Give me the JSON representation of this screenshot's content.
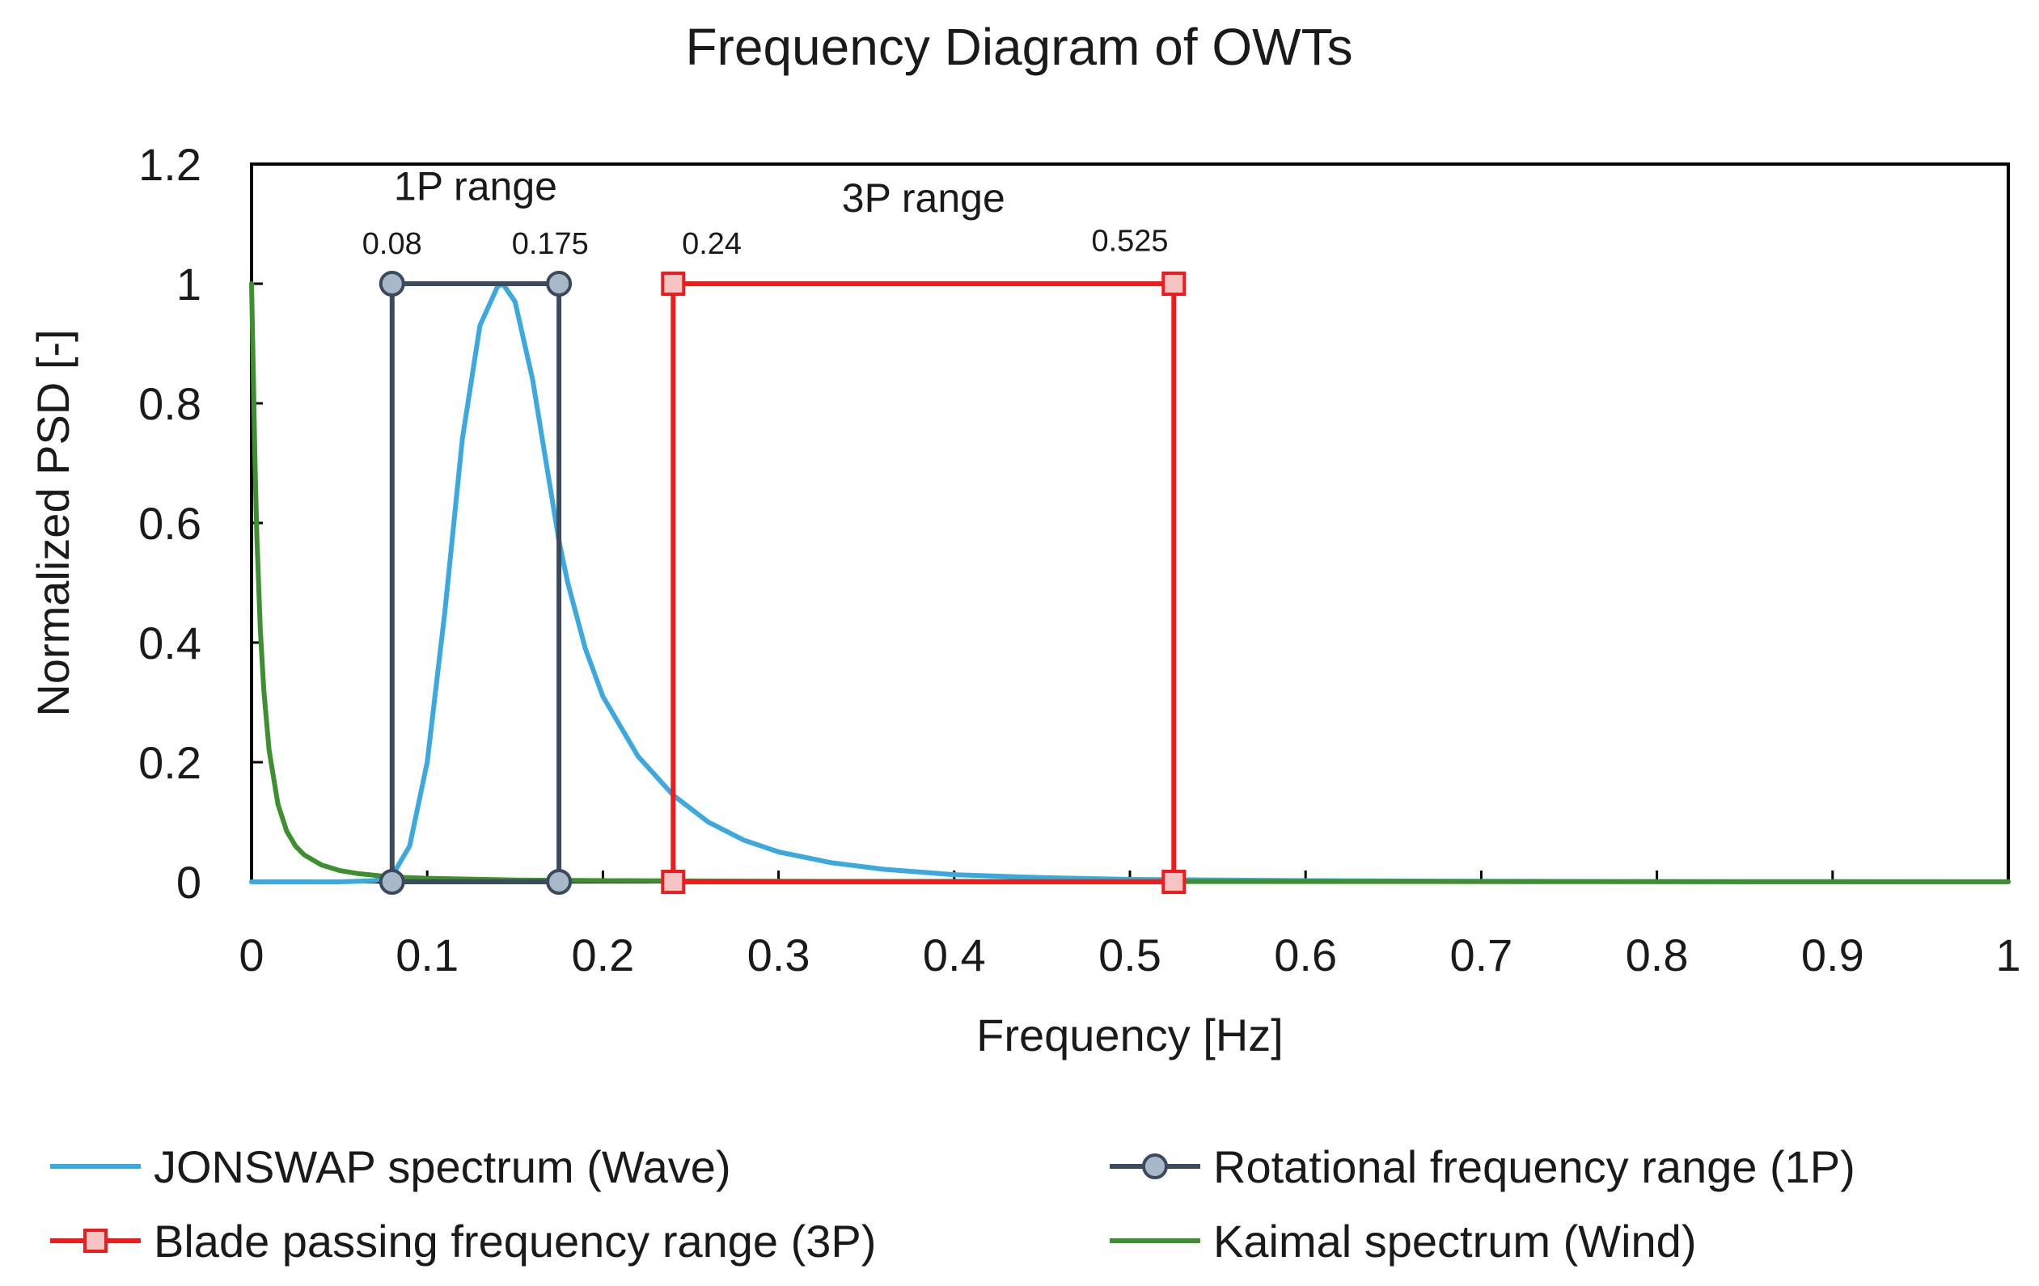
{
  "chart_data": {
    "type": "line",
    "title": "Frequency Diagram  of OWTs",
    "xlabel": "Frequency [Hz]",
    "ylabel": "Normalized PSD [-]",
    "xlim": [
      0,
      1
    ],
    "ylim": [
      0,
      1.2
    ],
    "x_ticks": [
      0,
      0.1,
      0.2,
      0.3,
      0.4,
      0.5,
      0.6,
      0.7,
      0.8,
      0.9,
      1
    ],
    "x_tick_labels": [
      "0",
      "0.1",
      "0.2",
      "0.3",
      "0.4",
      "0.5",
      "0.6",
      "0.7",
      "0.8",
      "0.9",
      "1"
    ],
    "y_ticks": [
      0,
      0.2,
      0.4,
      0.6,
      0.8,
      1,
      1.2
    ],
    "y_tick_labels": [
      "0",
      "0.2",
      "0.4",
      "0.6",
      "0.8",
      "1",
      "1.2"
    ],
    "grid": false,
    "legend_position": "bottom",
    "series": [
      {
        "name": "JONSWAP spectrum (Wave)",
        "color": "#3ba9e0",
        "marker": "none",
        "x": [
          0,
          0.05,
          0.07,
          0.08,
          0.09,
          0.1,
          0.11,
          0.12,
          0.13,
          0.14,
          0.143,
          0.15,
          0.16,
          0.17,
          0.175,
          0.18,
          0.19,
          0.2,
          0.22,
          0.24,
          0.26,
          0.28,
          0.3,
          0.33,
          0.36,
          0.4,
          0.45,
          0.5,
          0.6,
          0.7,
          0.8,
          0.9,
          1.0
        ],
        "y": [
          0,
          0,
          0.002,
          0.01,
          0.06,
          0.2,
          0.45,
          0.74,
          0.93,
          0.995,
          1.0,
          0.97,
          0.84,
          0.66,
          0.57,
          0.5,
          0.39,
          0.31,
          0.21,
          0.145,
          0.1,
          0.07,
          0.05,
          0.032,
          0.021,
          0.012,
          0.007,
          0.004,
          0.002,
          0.001,
          0.0005,
          0.0003,
          0.0002
        ]
      },
      {
        "name": "Rotational frequency range (1P)",
        "color": "#3b4a5c",
        "marker_fill": "#a9b8c9",
        "marker": "circle",
        "x": [
          0.08,
          0.08,
          0.175,
          0.175,
          0.08
        ],
        "y": [
          0,
          1,
          1,
          0,
          0
        ],
        "bounds": [
          0.08,
          0.175
        ]
      },
      {
        "name": "Blade passing frequency range (3P)",
        "color": "#ee1c1c",
        "marker_fill": "#f7c4c4",
        "marker": "square",
        "x": [
          0.24,
          0.24,
          0.525,
          0.525,
          0.24
        ],
        "y": [
          0,
          1,
          1,
          0,
          0
        ],
        "bounds": [
          0.24,
          0.525
        ]
      },
      {
        "name": "Kaimal spectrum (Wind)",
        "color": "#3d8f2f",
        "marker": "none",
        "x": [
          0,
          0.001,
          0.002,
          0.003,
          0.005,
          0.007,
          0.01,
          0.015,
          0.02,
          0.025,
          0.03,
          0.04,
          0.05,
          0.06,
          0.08,
          0.1,
          0.15,
          0.2,
          0.3,
          0.4,
          0.5,
          0.6,
          0.8,
          1.0
        ],
        "y": [
          1.0,
          0.85,
          0.7,
          0.58,
          0.42,
          0.32,
          0.22,
          0.13,
          0.085,
          0.06,
          0.045,
          0.028,
          0.019,
          0.014,
          0.008,
          0.006,
          0.003,
          0.002,
          0.001,
          0.0008,
          0.0006,
          0.0005,
          0.0003,
          0.0002
        ]
      }
    ],
    "annotations": [
      {
        "text": "1P range",
        "x": 0.1275,
        "y": 1.14,
        "size": "large"
      },
      {
        "text": "3P range",
        "x": 0.3825,
        "y": 1.12,
        "size": "large"
      },
      {
        "text": "0.08",
        "x": 0.08,
        "y": 1.05,
        "size": "small"
      },
      {
        "text": "0.175",
        "x": 0.17,
        "y": 1.05,
        "size": "small"
      },
      {
        "text": "0.24",
        "x": 0.262,
        "y": 1.05,
        "size": "small"
      },
      {
        "text": "0.525",
        "x": 0.5,
        "y": 1.055,
        "size": "small"
      }
    ]
  }
}
